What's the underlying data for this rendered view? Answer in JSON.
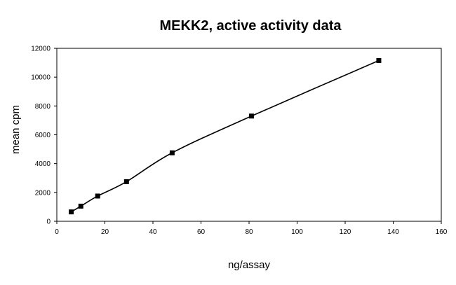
{
  "chart_data": {
    "type": "scatter",
    "title": "MEKK2, active activity data",
    "xlabel": "ng/assay",
    "ylabel": "mean cpm",
    "xlim": [
      0,
      160
    ],
    "ylim": [
      0,
      12000
    ],
    "x_ticks": [
      0,
      20,
      40,
      60,
      80,
      100,
      120,
      140,
      160
    ],
    "y_ticks": [
      0,
      2000,
      4000,
      6000,
      8000,
      10000,
      12000
    ],
    "x_tick_labels": [
      "0",
      "20",
      "40",
      "60",
      "80",
      "100",
      "120",
      "140",
      "160"
    ],
    "y_tick_labels": [
      "0",
      "2000",
      "4000",
      "6000",
      "8000",
      "10000",
      "12000"
    ],
    "grid": false,
    "legend": "none",
    "series": [
      {
        "marker": "square",
        "line": "smoothed",
        "color": "#000000",
        "x": [
          6,
          10,
          17,
          29,
          48,
          81,
          134
        ],
        "y": [
          650,
          1050,
          1750,
          2750,
          4750,
          7300,
          11150
        ]
      }
    ]
  }
}
